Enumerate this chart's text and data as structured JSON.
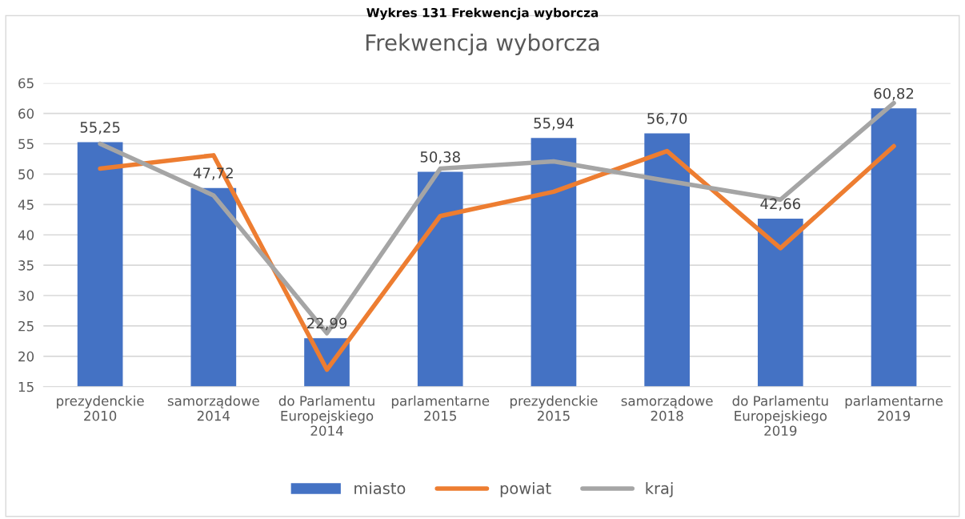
{
  "chart_data": {
    "type": "bar",
    "title": "Frekwencja wyborcza",
    "annotations": [
      "Wykres 131 Frekwencja wyborcza"
    ],
    "categories": [
      "prezydenckie\n2010",
      "samorządowe\n2014",
      "do Parlamentu\nEuropejskiego\n2014",
      "parlamentarne\n2015",
      "prezydenckie\n2015",
      "samorządowe\n2018",
      "do Parlamentu\nEuropejskiego\n2019",
      "parlamentarne\n2019"
    ],
    "series": [
      {
        "name": "miasto",
        "color": "#4472c4",
        "values": [
          55.25,
          47.72,
          22.99,
          50.38,
          55.94,
          56.7,
          42.66,
          60.82
        ],
        "value_labels": [
          "55,25",
          "47,72",
          "22,99",
          "50,38",
          "55,94",
          "56,70",
          "42,66",
          "60,82"
        ]
      },
      {
        "name": "powiat",
        "type": "line",
        "color": "#ed7d31",
        "values": [
          50.9,
          53.1,
          17.8,
          43.1,
          47.1,
          53.8,
          37.8,
          54.6
        ]
      },
      {
        "name": "kraj",
        "type": "line",
        "color": "#a5a5a5",
        "values": [
          55.0,
          46.5,
          23.8,
          50.9,
          52.1,
          48.9,
          45.8,
          61.7
        ]
      }
    ],
    "ylim": [
      15,
      65
    ],
    "yticks": [
      15,
      20,
      25,
      30,
      35,
      40,
      45,
      50,
      55,
      60,
      65
    ],
    "grid": "y",
    "legend": "bottom",
    "marker": "none",
    "line_style": "solid"
  }
}
